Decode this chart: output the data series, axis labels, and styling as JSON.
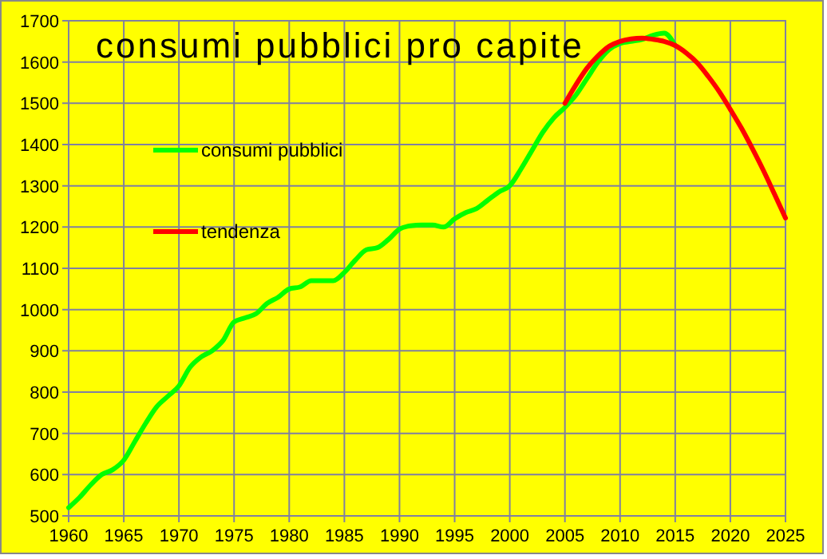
{
  "chart_data": {
    "type": "line",
    "title": "consumi pubblici pro capite",
    "xlim": [
      1960,
      2025
    ],
    "xticks": [
      1960,
      1965,
      1970,
      1975,
      1980,
      1985,
      1990,
      1995,
      2000,
      2005,
      2010,
      2015,
      2020,
      2025
    ],
    "ylim": [
      500,
      1700
    ],
    "yticks": [
      500,
      600,
      700,
      800,
      900,
      1000,
      1100,
      1200,
      1300,
      1400,
      1500,
      1600,
      1700
    ],
    "grid": true,
    "legend": "top left",
    "series": [
      {
        "name": "consumi pubblici",
        "color": "#00ff00",
        "x": [
          1960,
          1961,
          1962,
          1963,
          1964,
          1965,
          1966,
          1967,
          1968,
          1969,
          1970,
          1971,
          1972,
          1973,
          1974,
          1975,
          1976,
          1977,
          1978,
          1979,
          1980,
          1981,
          1982,
          1983,
          1984,
          1985,
          1986,
          1987,
          1988,
          1989,
          1990,
          1991,
          1992,
          1993,
          1994,
          1995,
          1996,
          1997,
          1998,
          1999,
          2000,
          2001,
          2002,
          2003,
          2004,
          2005,
          2006,
          2007,
          2008,
          2009,
          2010,
          2011,
          2012,
          2013,
          2014,
          2015
        ],
        "values": [
          520,
          545,
          575,
          600,
          612,
          635,
          680,
          725,
          765,
          790,
          815,
          860,
          885,
          900,
          925,
          970,
          980,
          990,
          1015,
          1030,
          1050,
          1055,
          1070,
          1070,
          1070,
          1090,
          1120,
          1145,
          1150,
          1170,
          1195,
          1203,
          1205,
          1205,
          1200,
          1220,
          1235,
          1245,
          1265,
          1285,
          1300,
          1340,
          1385,
          1430,
          1465,
          1490,
          1520,
          1560,
          1600,
          1630,
          1645,
          1650,
          1655,
          1665,
          1670,
          1640
        ]
      },
      {
        "name": "tendenza",
        "color": "#ff0000",
        "x": [
          2005,
          2006,
          2007,
          2008,
          2009,
          2010,
          2011,
          2012,
          2013,
          2014,
          2015,
          2016,
          2017,
          2018,
          2019,
          2020,
          2021,
          2022,
          2023,
          2024,
          2025
        ],
        "values": [
          1500,
          1545,
          1585,
          1615,
          1638,
          1650,
          1656,
          1658,
          1655,
          1650,
          1640,
          1622,
          1598,
          1565,
          1528,
          1485,
          1440,
          1390,
          1337,
          1280,
          1222
        ]
      }
    ]
  }
}
